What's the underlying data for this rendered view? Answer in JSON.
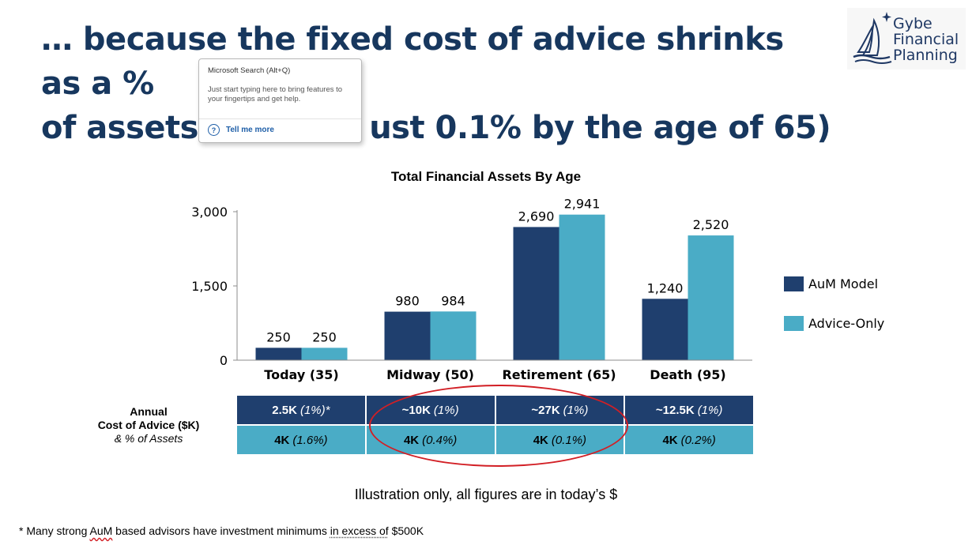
{
  "slide": {
    "title_line1": "… because the fixed cost of advice shrinks as a %",
    "title_line2": "of assets (",
    "title_line2_end": "ust 0.1% by the age of 65)"
  },
  "logo": {
    "line1": "Gybe",
    "line2": "Financial",
    "line3": "Planning",
    "icon": "sailboat-icon"
  },
  "tooltip": {
    "title": "Microsoft Search (Alt+Q)",
    "body": "Just start typing here to bring features to your fingertips and get help.",
    "link": "Tell me more",
    "icon": "help-circle-icon"
  },
  "chart_data": {
    "type": "bar",
    "title": "Total Financial Assets By Age",
    "categories": [
      "Today (35)",
      "Midway (50)",
      "Retirement (65)",
      "Death (95)"
    ],
    "series": [
      {
        "name": "AuM Model",
        "color": "#1f3f6e",
        "values": [
          250,
          980,
          2690,
          1240
        ],
        "labels": [
          "250",
          "980",
          "2,690",
          "1,240"
        ]
      },
      {
        "name": "Advice-Only",
        "color": "#4aacc6",
        "values": [
          250,
          984,
          2941,
          2520
        ],
        "labels": [
          "250",
          "984",
          "2,941",
          "2,520"
        ]
      }
    ],
    "ylim": [
      0,
      3000
    ],
    "yticks": [
      0,
      1500,
      3000
    ],
    "ytick_labels": [
      "0",
      "1,500",
      "3,000"
    ],
    "legend_position": "right",
    "grid": false,
    "xlabel": "",
    "ylabel": ""
  },
  "cost_table": {
    "label_line1": "Annual",
    "label_line2": "Cost of Advice ($K)",
    "label_line3": "& % of Assets",
    "aum_row": [
      {
        "value": "2.5K",
        "pct": "(1%)*"
      },
      {
        "value": "~10K",
        "pct": "(1%)"
      },
      {
        "value": "~27K",
        "pct": "(1%)"
      },
      {
        "value": "~12.5K",
        "pct": "(1%)"
      }
    ],
    "advice_row": [
      {
        "value": "4K",
        "pct": "(1.6%)"
      },
      {
        "value": "4K",
        "pct": "(0.4%)"
      },
      {
        "value": "4K",
        "pct": "(0.1%)"
      },
      {
        "value": "4K",
        "pct": "(0.2%)"
      }
    ]
  },
  "caption": "Illustration only, all figures are in today’s $",
  "footnote": {
    "part1": "* Many strong ",
    "part2": "AuM",
    "part3": " based advisors have investment minimums ",
    "part4": "in excess of",
    "part5": " $500K"
  }
}
